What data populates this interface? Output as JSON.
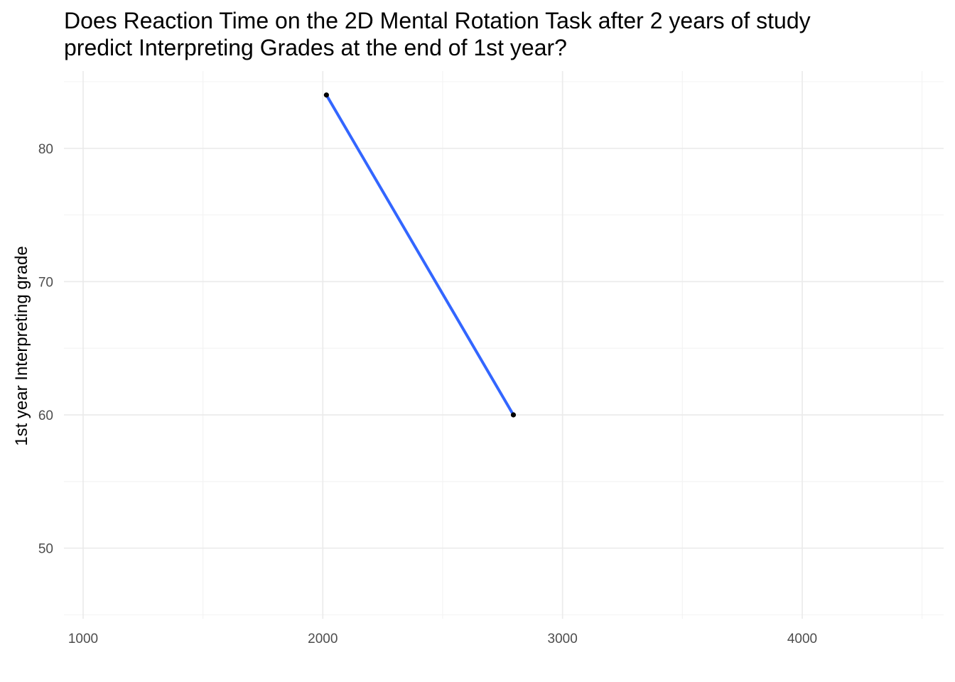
{
  "chart_data": {
    "type": "scatter",
    "title_lines": [
      "Does Reaction Time on the 2D Mental Rotation Task after 2 years of study",
      "predict Interpreting Grades at the end of 1st year?"
    ],
    "xlabel": "",
    "ylabel": "1st year Interpreting grade",
    "xlim": [
      920,
      4590
    ],
    "ylim": [
      44.7,
      85.8
    ],
    "x_ticks": [
      1000,
      2000,
      3000,
      4000
    ],
    "x_tick_labels": [
      "1000",
      "2000",
      "3000",
      "4000"
    ],
    "x_minor_ticks": [
      1500,
      2500,
      3500,
      4500
    ],
    "y_ticks": [
      50,
      60,
      70,
      80
    ],
    "y_tick_labels": [
      "50",
      "60",
      "70",
      "80"
    ],
    "y_minor_ticks": [
      45,
      55,
      65,
      75,
      85
    ],
    "grid": true,
    "points": [
      {
        "x": 2015,
        "y": 84
      },
      {
        "x": 2795,
        "y": 60
      }
    ],
    "fit_line": {
      "x": [
        2015,
        2795
      ],
      "y": [
        84,
        60
      ],
      "color": "#3366ff"
    },
    "point_color": "#000000",
    "background": "#ffffff"
  }
}
